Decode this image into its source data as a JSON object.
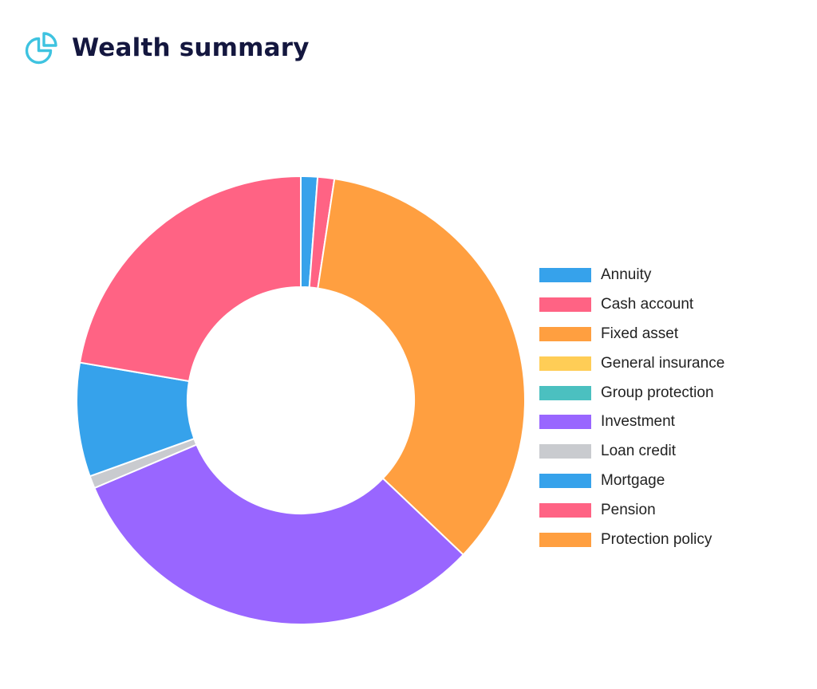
{
  "header": {
    "title": "Wealth summary",
    "icon": "pie-chart-icon",
    "icon_color": "#3ec3e0"
  },
  "chart_data": {
    "type": "pie",
    "variant": "doughnut",
    "title": "",
    "legend_position": "right",
    "categories": [
      "Annuity",
      "Cash account",
      "Fixed asset",
      "General insurance",
      "Group protection",
      "Investment",
      "Loan credit",
      "Mortgage",
      "Pension",
      "Protection policy"
    ],
    "values": [
      1.2,
      1.2,
      34.7,
      0,
      0,
      31.5,
      0.9,
      8.2,
      22.3,
      0
    ],
    "colors": [
      "#36a2eb",
      "#ff6384",
      "#ff9f40",
      "#ffcd56",
      "#4bc0c0",
      "#9966ff",
      "#c9cbcf",
      "#36a2eb",
      "#ff6384",
      "#ff9f40"
    ]
  }
}
